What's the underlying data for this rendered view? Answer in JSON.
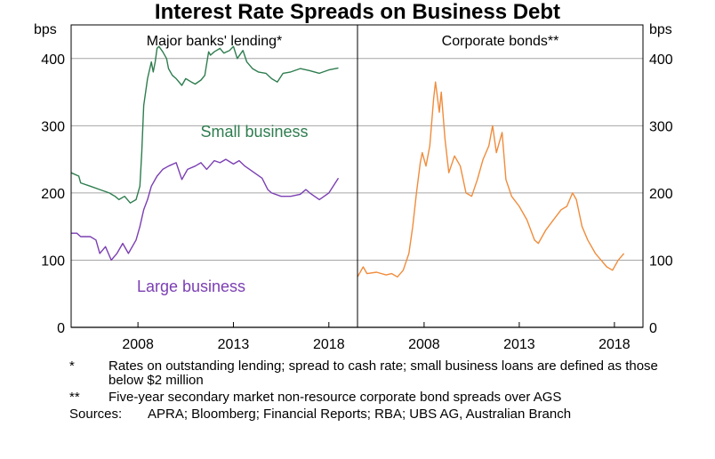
{
  "chart_data": {
    "type": "line",
    "title": "Interest Rate Spreads on Business Debt",
    "y_unit_left": "bps",
    "y_unit_right": "bps",
    "ylim": [
      0,
      450
    ],
    "yticks": [
      0,
      100,
      200,
      300,
      400
    ],
    "ytick_labels": [
      "0",
      "100",
      "200",
      "300",
      "400"
    ],
    "grid": true,
    "panels": [
      {
        "title": "Major banks' lending*",
        "xlim": [
          2004.5,
          2019.5
        ],
        "xticks": [
          2008,
          2013,
          2018
        ],
        "xtick_labels": [
          "2008",
          "2013",
          "2018"
        ],
        "series": [
          {
            "name": "Small business",
            "color": "#2e7d4f",
            "x": [
              2004.5,
              2004.9,
              2005.0,
              2005.5,
              2006.0,
              2006.5,
              2006.8,
              2007.0,
              2007.3,
              2007.6,
              2007.9,
              2008.1,
              2008.2,
              2008.3,
              2008.5,
              2008.7,
              2008.8,
              2008.9,
              2009.0,
              2009.1,
              2009.3,
              2009.5,
              2009.6,
              2009.8,
              2010.0,
              2010.3,
              2010.5,
              2010.8,
              2011.0,
              2011.3,
              2011.5,
              2011.7,
              2011.8,
              2012.0,
              2012.3,
              2012.5,
              2012.8,
              2013.0,
              2013.2,
              2013.5,
              2013.7,
              2014.0,
              2014.3,
              2014.7,
              2015.0,
              2015.3,
              2015.6,
              2016.0,
              2016.5,
              2017.0,
              2017.5,
              2018.0,
              2018.5
            ],
            "values": [
              230,
              225,
              215,
              210,
              205,
              200,
              195,
              190,
              195,
              185,
              190,
              210,
              260,
              330,
              370,
              395,
              380,
              395,
              415,
              418,
              410,
              400,
              385,
              375,
              370,
              360,
              370,
              365,
              362,
              368,
              375,
              410,
              405,
              410,
              415,
              408,
              412,
              418,
              400,
              412,
              395,
              385,
              380,
              378,
              370,
              365,
              378,
              380,
              385,
              382,
              378,
              383,
              386
            ]
          },
          {
            "name": "Large business",
            "color": "#7b3fb3",
            "x": [
              2004.5,
              2004.8,
              2005.0,
              2005.5,
              2005.8,
              2006.0,
              2006.3,
              2006.6,
              2006.9,
              2007.2,
              2007.5,
              2007.9,
              2008.1,
              2008.3,
              2008.5,
              2008.7,
              2009.0,
              2009.3,
              2009.6,
              2010.0,
              2010.3,
              2010.6,
              2011.0,
              2011.3,
              2011.6,
              2012.0,
              2012.3,
              2012.6,
              2013.0,
              2013.3,
              2013.6,
              2014.0,
              2014.5,
              2014.8,
              2015.0,
              2015.5,
              2016.0,
              2016.5,
              2016.8,
              2017.0,
              2017.5,
              2018.0,
              2018.5
            ],
            "values": [
              140,
              140,
              135,
              135,
              130,
              110,
              120,
              100,
              110,
              125,
              110,
              130,
              150,
              175,
              190,
              210,
              225,
              235,
              240,
              245,
              220,
              235,
              240,
              245,
              235,
              248,
              245,
              250,
              243,
              248,
              240,
              232,
              222,
              205,
              200,
              195,
              195,
              198,
              205,
              200,
              190,
              200,
              222
            ]
          }
        ],
        "annotations": [
          {
            "text": "Small business",
            "color": "#2e7d4f"
          },
          {
            "text": "Large business",
            "color": "#7b3fb3"
          }
        ]
      },
      {
        "title": "Corporate bonds**",
        "xlim": [
          2004.5,
          2019.5
        ],
        "xticks": [
          2008,
          2013,
          2018
        ],
        "xtick_labels": [
          "2008",
          "2013",
          "2018"
        ],
        "series": [
          {
            "name": "",
            "color": "#f08c3c",
            "x": [
              2004.5,
              2004.8,
              2005.0,
              2005.5,
              2006.0,
              2006.3,
              2006.6,
              2006.9,
              2007.2,
              2007.4,
              2007.6,
              2007.8,
              2007.9,
              2008.1,
              2008.3,
              2008.5,
              2008.6,
              2008.8,
              2008.9,
              2009.1,
              2009.3,
              2009.6,
              2009.9,
              2010.2,
              2010.5,
              2010.8,
              2011.1,
              2011.4,
              2011.6,
              2011.8,
              2012.1,
              2012.3,
              2012.6,
              2013.0,
              2013.4,
              2013.8,
              2014.0,
              2014.4,
              2014.8,
              2015.2,
              2015.5,
              2015.8,
              2016.0,
              2016.3,
              2016.6,
              2017.0,
              2017.3,
              2017.6,
              2017.9,
              2018.2,
              2018.5
            ],
            "values": [
              75,
              90,
              80,
              82,
              78,
              80,
              75,
              85,
              110,
              150,
              200,
              245,
              260,
              240,
              270,
              340,
              365,
              320,
              350,
              280,
              230,
              255,
              240,
              200,
              195,
              220,
              250,
              270,
              300,
              260,
              290,
              220,
              195,
              180,
              160,
              130,
              125,
              145,
              160,
              175,
              180,
              200,
              190,
              150,
              130,
              110,
              100,
              90,
              85,
              100,
              110
            ]
          }
        ]
      }
    ]
  },
  "notes": [
    {
      "mark": "*",
      "text": "Rates on outstanding lending; spread to cash rate; small business loans are defined as those below $2 million"
    },
    {
      "mark": "**",
      "text": "Five-year secondary market non-resource corporate bond spreads over AGS"
    }
  ],
  "sources": {
    "label": "Sources:",
    "text": "APRA; Bloomberg; Financial Reports; RBA; UBS AG, Australian Branch"
  }
}
